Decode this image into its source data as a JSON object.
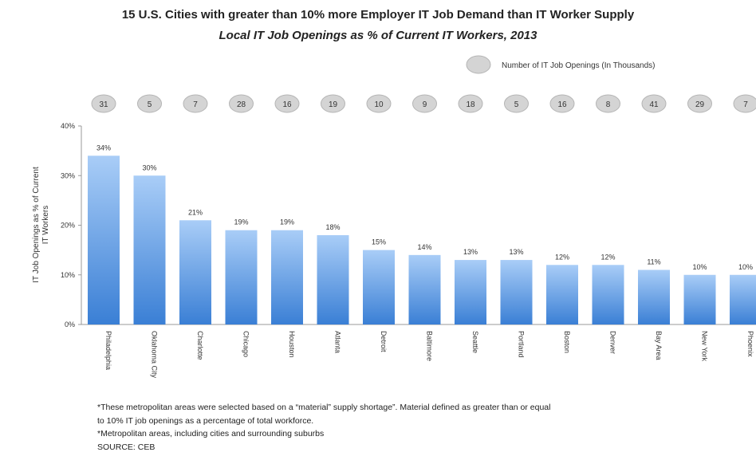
{
  "chart_data": {
    "type": "bar",
    "title": "15 U.S. Cities with greater than 10% more Employer IT Job Demand than IT Worker Supply",
    "subtitle": "Local IT Job Openings as % of Current IT Workers, 2013",
    "ylabel": "IT Job Openings as % of Current IT Workers",
    "ylim": [
      0,
      40
    ],
    "yticks": [
      "0%",
      "10%",
      "20%",
      "30%",
      "40%"
    ],
    "legend_label": "Number of IT Job Openings (In Thousands)",
    "legend_placement": "top-right",
    "grid": false,
    "categories": [
      "Philadelphia",
      "Oklahoma City",
      "Charlotte",
      "Chicago",
      "Houston",
      "Atlanta",
      "Detroit",
      "Baltimore",
      "Seattle",
      "Portland",
      "Boston",
      "Denver",
      "Bay Area",
      "New York",
      "Phoenix"
    ],
    "values": [
      34,
      30,
      21,
      19,
      19,
      18,
      15,
      14,
      13,
      13,
      12,
      12,
      11,
      10,
      10
    ],
    "value_labels": [
      "34%",
      "30%",
      "21%",
      "19%",
      "19%",
      "18%",
      "15%",
      "14%",
      "13%",
      "13%",
      "12%",
      "12%",
      "11%",
      "10%",
      "10%"
    ],
    "openings_thousands": [
      "31",
      "5",
      "7",
      "28",
      "16",
      "19",
      "10",
      "9",
      "18",
      "5",
      "16",
      "8",
      "41",
      "29",
      "7"
    ],
    "colors": {
      "bar_top": "#a9cdf7",
      "bar_bottom": "#3a7fd5",
      "bubble": "#d4d4d4",
      "bubble_stroke": "#b5b5b5"
    }
  },
  "footnotes": [
    "*These metropolitan areas were selected based on a “material” supply shortage”. Material defined as greater than or equal",
    "to 10% IT job openings as a percentage of total workforce.",
    "*Metropolitan areas, including cities and surrounding suburbs",
    "SOURCE: CEB"
  ]
}
